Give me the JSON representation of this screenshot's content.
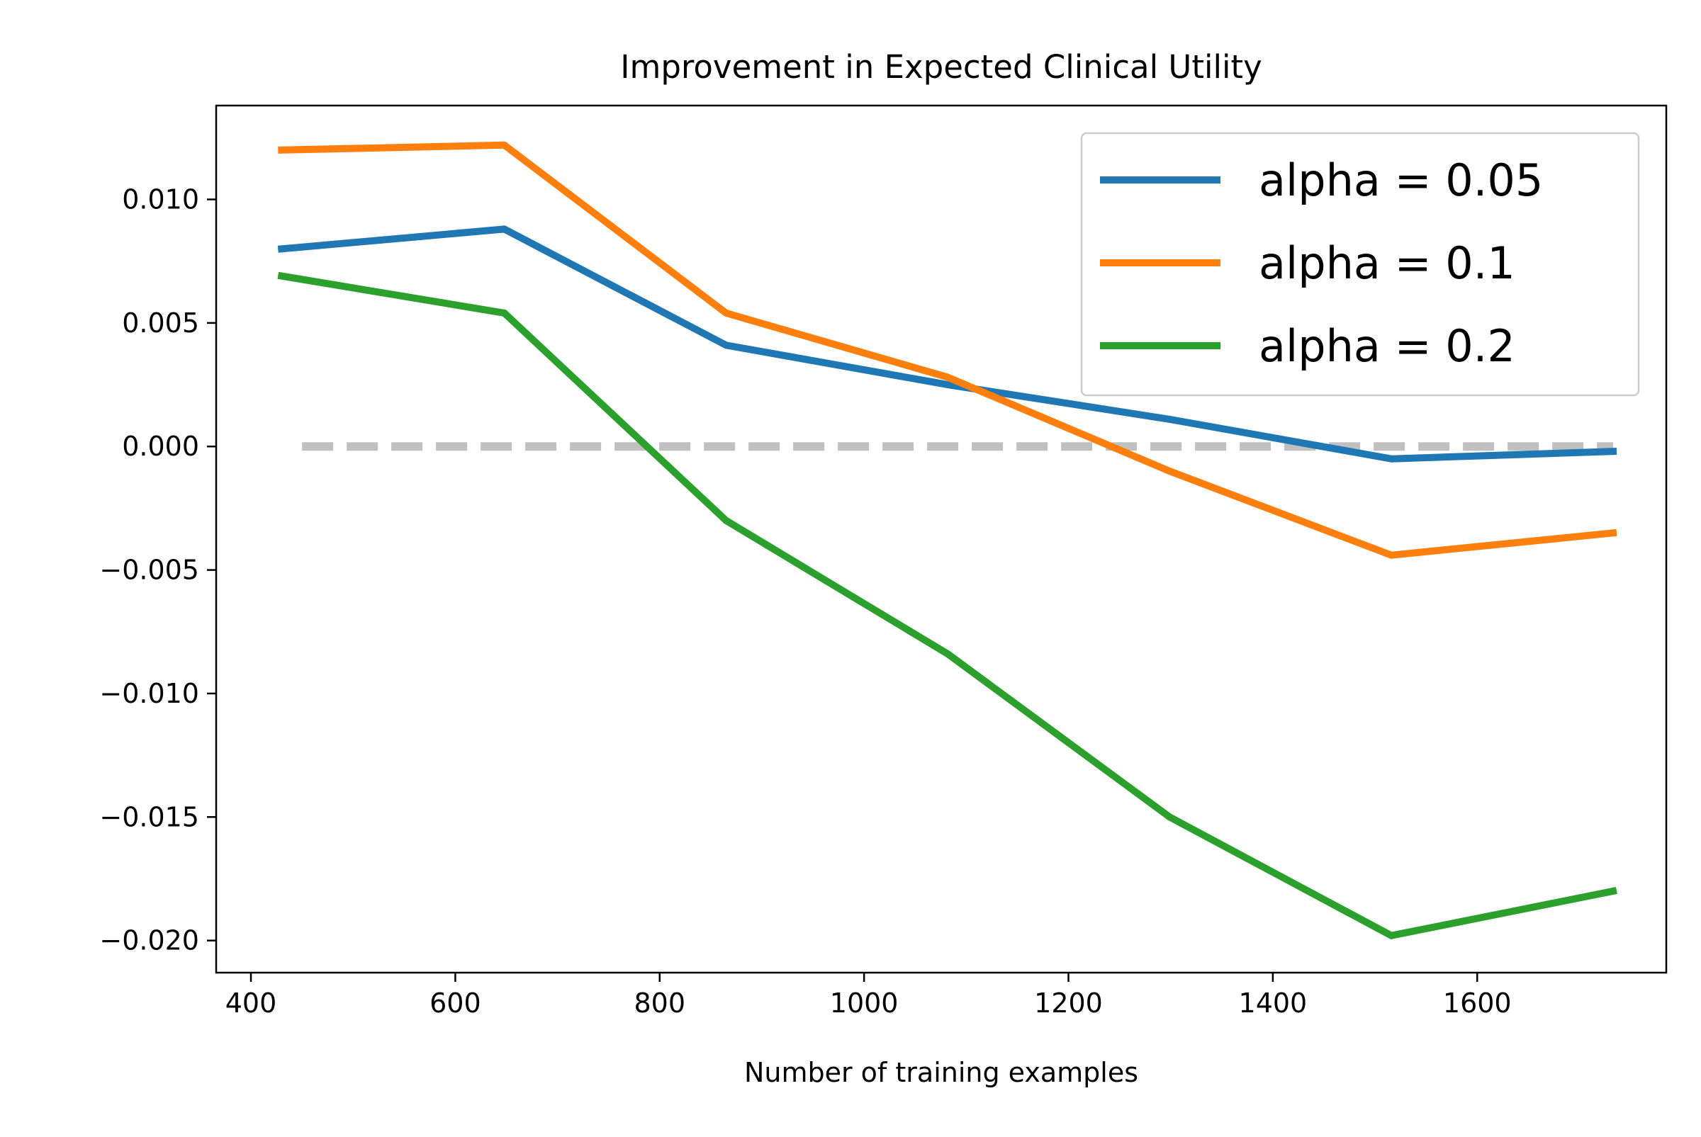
{
  "chart_data": {
    "type": "line",
    "title": "Improvement in Expected Clinical Utility",
    "xlabel": "Number of training examples",
    "ylabel": "",
    "xlim": [
      366,
      1785
    ],
    "ylim": [
      -0.0213,
      0.0138
    ],
    "x": [
      430,
      648,
      865,
      1082,
      1299,
      1516,
      1733
    ],
    "series": [
      {
        "name": "alpha = 0.05",
        "color": "#1f77b4",
        "values": [
          0.008,
          0.0088,
          0.0041,
          0.0025,
          0.0011,
          -0.0005,
          -0.0002
        ]
      },
      {
        "name": "alpha = 0.1",
        "color": "#ff7f0e",
        "values": [
          0.012,
          0.0122,
          0.0054,
          0.0028,
          -0.001,
          -0.0044,
          -0.0035
        ]
      },
      {
        "name": "alpha = 0.2",
        "color": "#2ca02c",
        "values": [
          0.0069,
          0.0054,
          -0.003,
          -0.0084,
          -0.015,
          -0.0198,
          -0.018
        ]
      }
    ],
    "reference_line": {
      "y": 0.0,
      "x": [
        450,
        1733
      ],
      "color": "#c0c0c0",
      "style": "dashed"
    },
    "xticks": [
      400,
      600,
      800,
      1000,
      1200,
      1400,
      1600
    ],
    "xtick_labels": [
      "400",
      "600",
      "800",
      "1000",
      "1200",
      "1400",
      "1600"
    ],
    "yticks": [
      0.01,
      0.005,
      0.0,
      -0.005,
      -0.01,
      -0.015,
      -0.02
    ],
    "ytick_labels": [
      "0.010",
      "0.005",
      "0.000",
      "−0.005",
      "−0.010",
      "−0.015",
      "−0.020"
    ],
    "legend_position": "top-right",
    "grid": false
  }
}
